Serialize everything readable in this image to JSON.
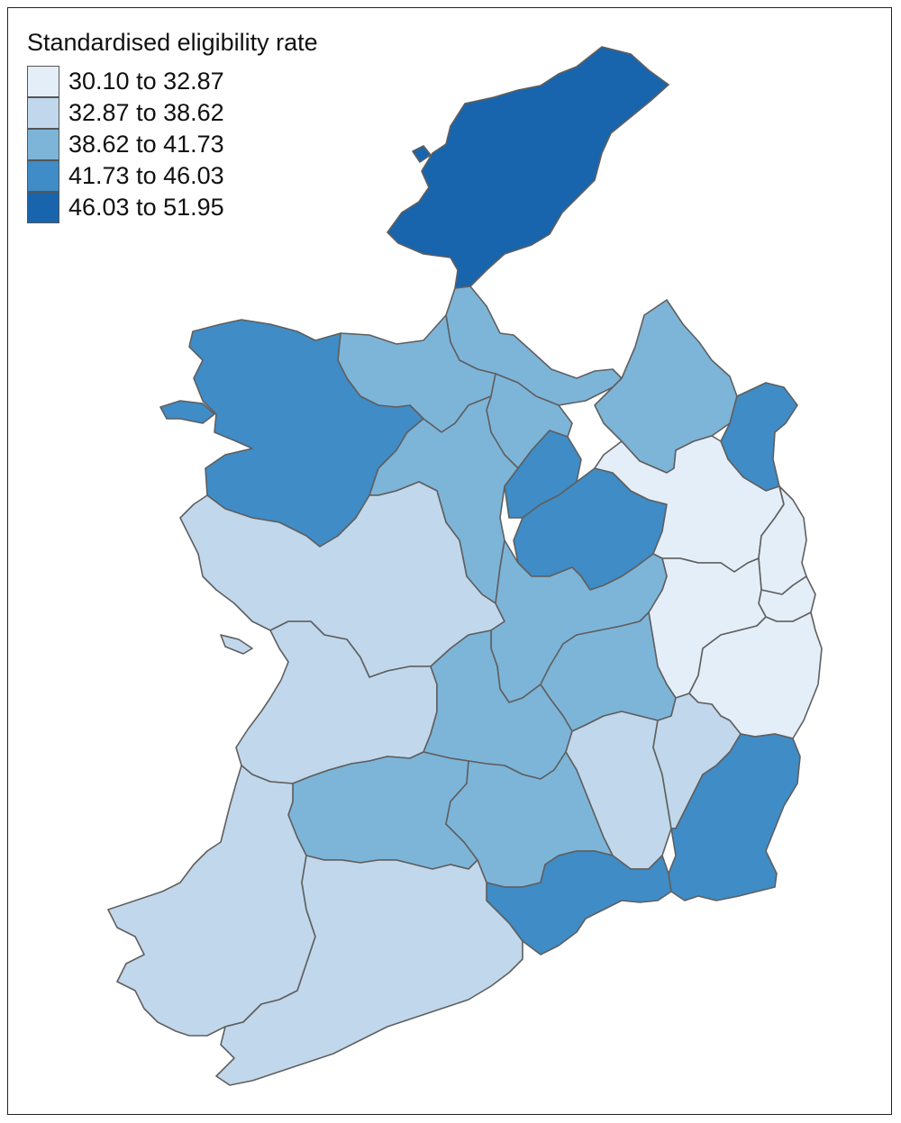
{
  "legend": {
    "title": "Standardised eligibility rate",
    "classes": [
      {
        "label": "30.10 to 32.87",
        "color": "#e4eef8"
      },
      {
        "label": "32.87 to 38.62",
        "color": "#c1d7eb"
      },
      {
        "label": "38.62 to 41.73",
        "color": "#7db5d9"
      },
      {
        "label": "41.73 to 46.03",
        "color": "#3f8cc6"
      },
      {
        "label": "46.03 to 51.95",
        "color": "#1865ad"
      }
    ]
  },
  "boundary_color": "#5f5f5f"
}
